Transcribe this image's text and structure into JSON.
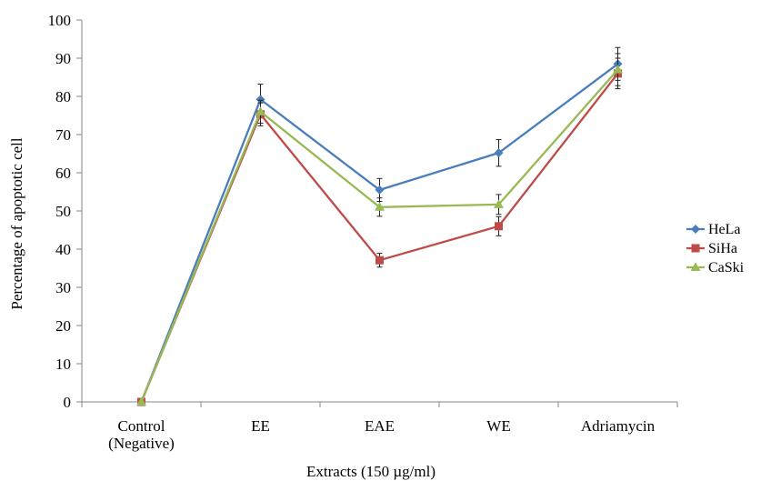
{
  "chart_data": {
    "type": "line",
    "xlabel": "Extracts (150 µg/ml)",
    "ylabel": "Percentage of apoptotic cell",
    "ylim": [
      0,
      100
    ],
    "yticks": [
      0,
      10,
      20,
      30,
      40,
      50,
      60,
      70,
      80,
      90,
      100
    ],
    "categories": [
      "Control (Negative)",
      "EE",
      "EAE",
      "WE",
      "Adriamycin"
    ],
    "category_lines": [
      [
        "Control",
        "(Negative)"
      ],
      [
        "EE"
      ],
      [
        "EAE"
      ],
      [
        "WE"
      ],
      [
        "Adriamycin"
      ]
    ],
    "grid": false,
    "legend_position": "right",
    "series": [
      {
        "name": "HeLa",
        "color": "#4a7ebb",
        "marker": "diamond",
        "values": [
          0,
          79.2,
          55.5,
          65.2,
          88.5
        ],
        "errors": [
          0,
          4.0,
          3.0,
          3.5,
          4.3
        ]
      },
      {
        "name": "SiHa",
        "color": "#be4b48",
        "marker": "square",
        "values": [
          0,
          75.3,
          37.1,
          46.0,
          86.0
        ],
        "errors": [
          0,
          3.0,
          1.8,
          2.5,
          4.0
        ]
      },
      {
        "name": "CaSki",
        "color": "#98b954",
        "marker": "triangle",
        "values": [
          0,
          76.0,
          51.0,
          51.7,
          87.0
        ],
        "errors": [
          0,
          3.0,
          2.4,
          2.6,
          4.2
        ]
      }
    ]
  }
}
